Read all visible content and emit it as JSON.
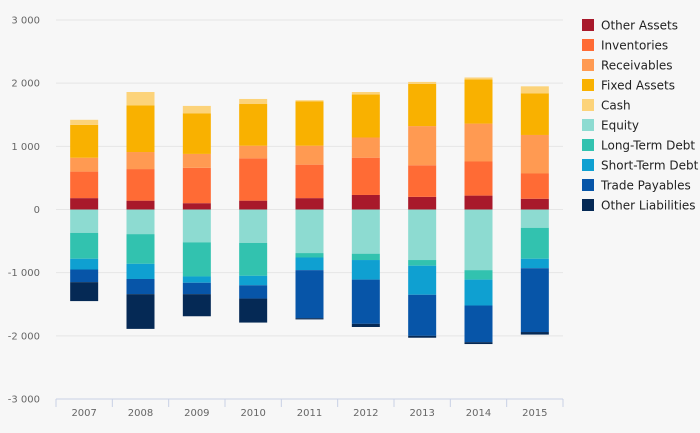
{
  "chart_data": {
    "type": "bar",
    "stacked": true,
    "categories": [
      "2007",
      "2008",
      "2009",
      "2010",
      "2011",
      "2012",
      "2013",
      "2014",
      "2015"
    ],
    "ylim": [
      -3000,
      3000
    ],
    "yticks": [
      -3000,
      -2000,
      -1000,
      0,
      1000,
      2000,
      3000
    ],
    "ytick_labels": [
      "-3 000",
      "-2 000",
      "-1 000",
      "0",
      "1 000",
      "2 000",
      "3 000"
    ],
    "grid": true,
    "legend_position": "right",
    "series": [
      {
        "name": "Other Assets",
        "color": "#a8192b",
        "values": [
          180,
          140,
          100,
          140,
          180,
          230,
          200,
          220,
          170
        ]
      },
      {
        "name": "Inventories",
        "color": "#ff6b35",
        "values": [
          420,
          500,
          560,
          670,
          530,
          590,
          500,
          540,
          400
        ]
      },
      {
        "name": "Receivables",
        "color": "#ff9a52",
        "values": [
          220,
          270,
          220,
          200,
          300,
          320,
          620,
          600,
          610
        ]
      },
      {
        "name": "Fixed Assets",
        "color": "#f9b100",
        "values": [
          520,
          740,
          640,
          660,
          700,
          680,
          670,
          700,
          660
        ]
      },
      {
        "name": "Cash",
        "color": "#fcd37a",
        "values": [
          80,
          210,
          120,
          80,
          20,
          40,
          30,
          30,
          110
        ]
      },
      {
        "name": "Equity",
        "color": "#8ddbd1",
        "values": [
          -370,
          -390,
          -520,
          -530,
          -690,
          -700,
          -800,
          -960,
          -290
        ]
      },
      {
        "name": "Long-Term Debt",
        "color": "#32c2af",
        "values": [
          -410,
          -470,
          -540,
          -520,
          -70,
          -100,
          -90,
          -150,
          -490
        ]
      },
      {
        "name": "Short-Term Debt",
        "color": "#0fa0d1",
        "values": [
          -170,
          -240,
          -100,
          -150,
          -200,
          -310,
          -460,
          -410,
          -150
        ]
      },
      {
        "name": "Trade Payables",
        "color": "#0755a8",
        "values": [
          -200,
          -240,
          -180,
          -210,
          -760,
          -700,
          -650,
          -580,
          -1010
        ]
      },
      {
        "name": "Other Liabilities",
        "color": "#052955",
        "values": [
          -300,
          -550,
          -350,
          -380,
          -20,
          -50,
          -30,
          -30,
          -40
        ]
      }
    ]
  }
}
